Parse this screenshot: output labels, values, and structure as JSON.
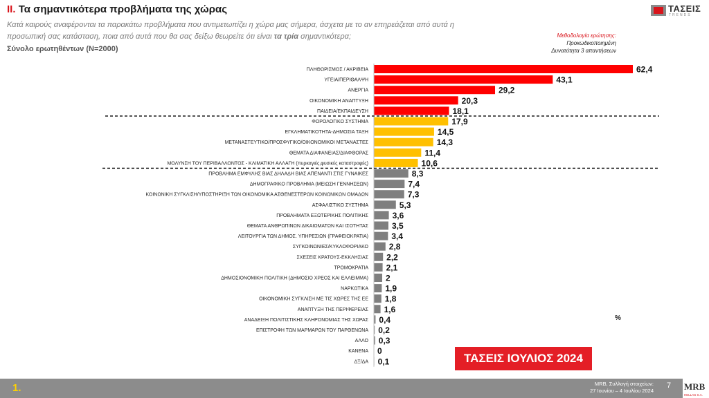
{
  "header": {
    "title_num": "II.",
    "title_text": "Τα σημαντικότερα προβλήματα της χώρας",
    "question_part1": "Κατά καιρούς αναφέρονται τα παρακάτω προβλήματα που αντιμετωπίζει η χώρα μας σήμερα, άσχετα με το αν επηρεάζεται από αυτά η προσωπική σας κατάσταση, ποια από αυτά που θα σας δείξω θεωρείτε ότι είναι",
    "question_bold": "τα τρία",
    "question_part2": "σημαντικότερα;",
    "base": "Σύνολο ερωτηθέντων (N=2000)"
  },
  "logo": {
    "word": "ΤΑΣΕΙΣ",
    "sub": "TRENDS"
  },
  "methodology": {
    "heading": "Μεθοδολογία ερώτησης:",
    "line1": "Προκωδικοποιημένη",
    "line2": "Δυνατότητα 3 απαντήσεων"
  },
  "chart_data": {
    "type": "bar",
    "orientation": "horizontal",
    "unit": "%",
    "categories": [
      "ΠΛΗΘΩΡΙΣΜΟΣ / ΑΚΡΙΒΕΙΑ",
      "ΥΓΕΙΑ/ΠΕΡΙΘΑΛΨΗ",
      "ΑΝΕΡΓΙΑ",
      "ΟΙΚΟΝΟΜΙΚΗ ΑΝΑΠΤΥΞΗ",
      "ΠΑΙΔΕΙΑ/ΕΚΠΑΙΔΕΥΣΗ",
      "ΦΟΡΟΛΟΓΙΚΟ ΣΥΣΤΗΜΑ",
      "ΕΓΚΛΗΜΑΤΙΚΟΤΗΤΑ-ΔΗΜΟΣΙΑ ΤΑΞΗ",
      "ΜΕΤΑΝΑΣΤΕΥΤΙΚΟ/ΠΡΟΣΦΥΓΙΚΟ/ΟΙΚΟΝΟΜΙΚΟΙ ΜΕΤΑΝΑΣΤΕΣ",
      "ΘΕΜΑΤΑ ΔΙΑΦΑΝΕΙΑΣ/ΔΙΑΦΘΟΡΑΣ",
      "ΜΟΛΥΝΣΗ ΤΟΥ ΠΕΡΙΒΑΛΛΟΝΤΟΣ - ΚΛΙΜΑΤΙΚΗ ΑΛΛΑΓΗ (πυρκαγιές,φυσικές καταστροφές)",
      "ΠΡΟΒΛΗΜΑ ΕΜΦΥΛΗΣ ΒΙΑΣ ΔΗΛΑΔΗ ΒΙΑΣ ΑΠΕΝΑΝΤΙ ΣΤΙΣ ΓΥΝΑΙΚΕΣ",
      "ΔΗΜΟΓΡΑΦΙΚΟ ΠΡΟΒΛΗΜΑ (ΜΕΙΩΣΗ ΓΕΝΝΗΣΕΩΝ)",
      "ΚΟΙΝΩΝΙΚΗ ΣΥΓΚΛΙΣΗ/ΥΠΟΣΤΗΡΙΞΗ ΤΩΝ ΟΙΚΟΝΟΜΙΚΑ ΑΣΘΕΝΕΣΤΕΡΩΝ ΚΟΙΝΩΝΙΚΩΝ ΟΜΑΔΩΝ",
      "ΑΣΦΑΛΙΣΤΙΚΟ ΣΥΣΤΗΜΑ",
      "ΠΡΟΒΛΗΜΑΤΑ ΕΞΩΤΕΡΙΚΗΣ ΠΟΛΙΤΙΚΗΣ",
      "ΘΕΜΑΤΑ ΑΝΘΡΩΠΙΝΩΝ ΔΙΚΑΙΩΜΑΤΩΝ ΚΑΙ ΙΣΟΤΗΤΑΣ",
      "ΛΕΙΤΟΥΡΓΙΑ ΤΩΝ ΔΗΜΟΣ. ΥΠΗΡΕΣΙΩΝ (ΓΡΑΦΕΙΟΚΡΑΤΙΑ)",
      "ΣΥΓΚΟΙΝΩΝΙΕΣ/ΚΥΚΛΟΦΟΡΙΑΚΟ",
      "ΣΧΕΣΕΙΣ ΚΡΑΤΟΥΣ-ΕΚΚΛΗΣΙΑΣ",
      "ΤΡΟΜΟΚΡΑΤΙΑ",
      "ΔΗΜΟΣΙΟΝΟΜΙΚΗ ΠΟΛΙΤΙΚΗ (ΔΗΜΟΣΙΟ ΧΡΕΟΣ ΚΑΙ ΕΛΛΕΙΜΜΑ)",
      "ΝΑΡΚΩΤΙΚΑ",
      "ΟΙΚΟΝΟΜΙΚΗ ΣΥΓΚΛΙΣΗ ΜΕ ΤΙΣ ΧΩΡΕΣ ΤΗΣ ΕΕ",
      "ΑΝΑΠΤΥΞΗ ΤΗΣ ΠΕΡΙΦΕΡΕΙΑΣ",
      "ΑΝΑΔΕΙΞΗ ΠΟΛΙΤΙΣΤΙΚΗΣ ΚΛΗΡΟΝΟΜΙΑΣ ΤΗΣ ΧΩΡΑΣ",
      "ΕΠΙΣΤΡΟΦΗ ΤΩΝ ΜΑΡΜΑΡΩΝ ΤΟΥ ΠΑΡΘΕΝΩΝΑ",
      "ΑΛΛΟ",
      "ΚΑΝΕΝΑ",
      "ΔΞ/ΔΑ"
    ],
    "values": [
      62.4,
      43.1,
      29.2,
      20.3,
      18.1,
      17.9,
      14.5,
      14.3,
      11.4,
      10.6,
      8.3,
      7.4,
      7.3,
      5.3,
      3.6,
      3.5,
      3.4,
      2.8,
      2.2,
      2.1,
      2,
      1.9,
      1.8,
      1.6,
      0.4,
      0.2,
      0.3,
      0,
      0.1
    ],
    "value_labels": [
      "62,4",
      "43,1",
      "29,2",
      "20,3",
      "18,1",
      "17,9",
      "14,5",
      "14,3",
      "11,4",
      "10,6",
      "8,3",
      "7,4",
      "7,3",
      "5,3",
      "3,6",
      "3,5",
      "3,4",
      "2,8",
      "2,2",
      "2,1",
      "2",
      "1,9",
      "1,8",
      "1,6",
      "0,4",
      "0,2",
      "0,3",
      "0",
      "0,1"
    ],
    "groups": [
      {
        "color": "#ff0000",
        "from": 0,
        "to": 4
      },
      {
        "color": "#ffc000",
        "from": 5,
        "to": 9
      },
      {
        "color": "#7f7f7f",
        "from": 10,
        "to": 28
      }
    ],
    "dividers_after": [
      4,
      9
    ],
    "xlim": [
      0,
      65
    ],
    "grid": false,
    "legend": "none"
  },
  "unit_label": "%",
  "stamp": "ΤΑΣΕΙΣ ΙΟΥΛΙΟΣ 2024",
  "footer": {
    "page_marker": "1.",
    "collection_label": "MRB, Συλλογή στοιχείων:",
    "collection_dates": "27 Ιουνίου – 4 Ιουλίου 2024",
    "slide_number": "7",
    "logo_text": "MRB",
    "logo_sub": "HELLAS S.A."
  }
}
